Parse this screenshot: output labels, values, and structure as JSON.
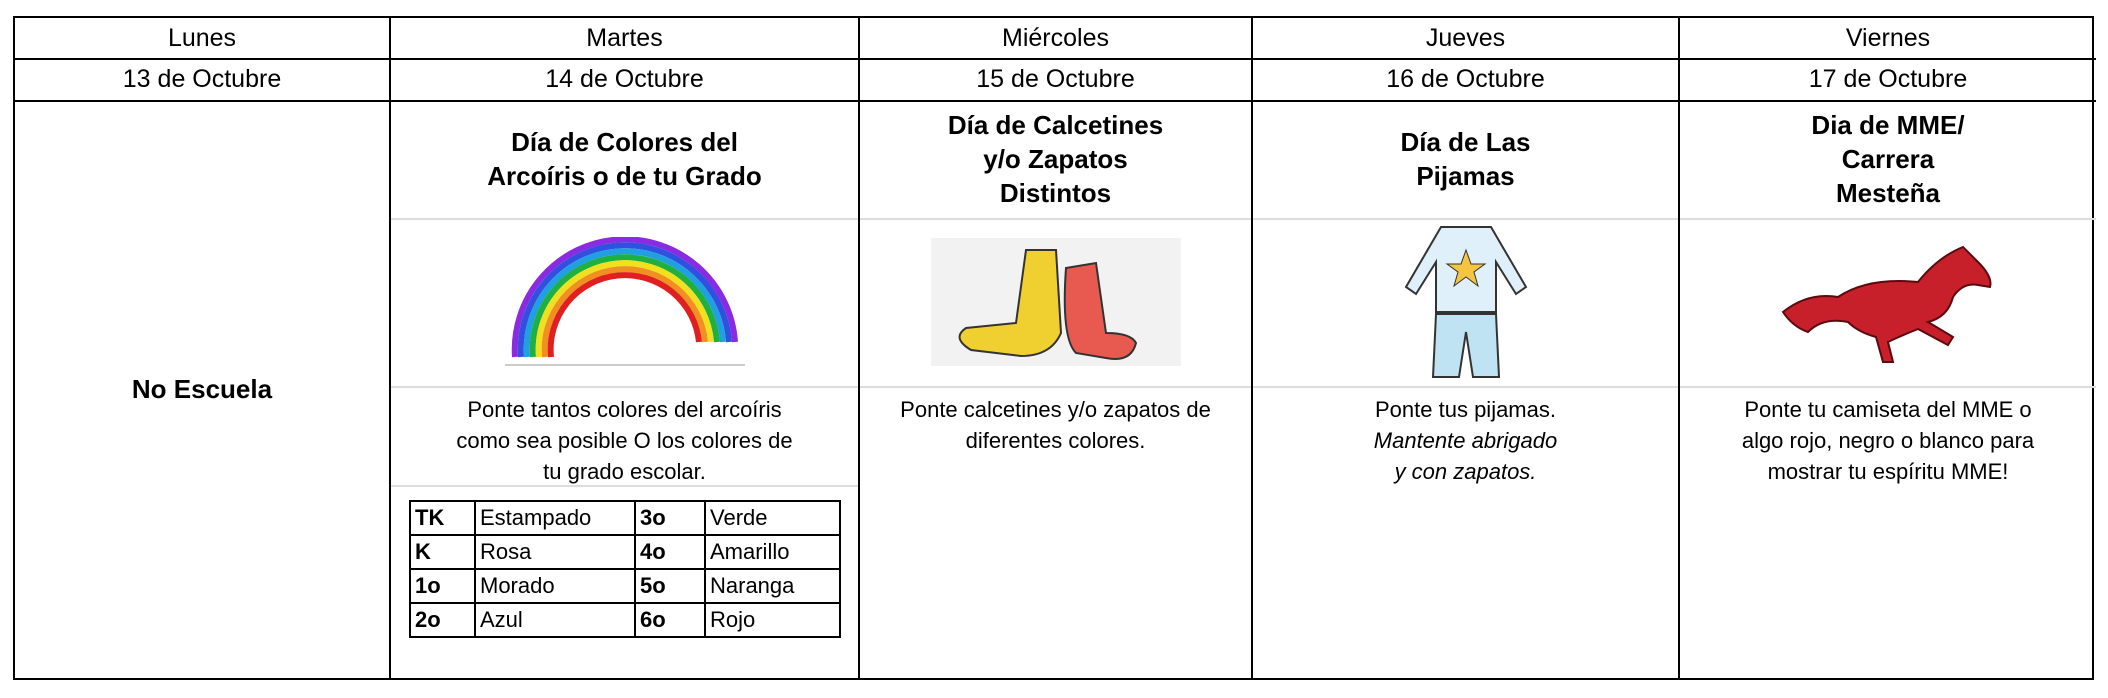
{
  "days": [
    {
      "name": "Lunes",
      "date": "13 de Octubre",
      "note": "No Escuela"
    },
    {
      "name": "Martes",
      "date": "14 de Octubre",
      "title_lines": [
        "Día de Colores del",
        "Arcoíris o de tu Grado"
      ],
      "image": "rainbow-image",
      "desc_lines": [
        "Ponte tantos colores del arcoíris",
        "como sea posible O los colores de",
        "tu grado escolar."
      ]
    },
    {
      "name": "Miércoles",
      "date": "15 de Octubre",
      "title_lines": [
        "Día de Calcetines",
        "y/o Zapatos",
        "Distintos"
      ],
      "image": "socks-image",
      "desc_lines": [
        "Ponte calcetines y/o zapatos de",
        "diferentes colores."
      ]
    },
    {
      "name": "Jueves",
      "date": "16 de Octubre",
      "title_lines": [
        "Día de Las",
        "Pijamas"
      ],
      "image": "pajamas-image",
      "desc_lines": [
        "Ponte tus pijamas."
      ],
      "desc_italic_lines": [
        "Mantente abrigado",
        "y con zapatos."
      ]
    },
    {
      "name": "Viernes",
      "date": "17 de Octubre",
      "title_lines": [
        "Dia de MME/",
        "Carrera",
        "Mesteña"
      ],
      "image": "horse-image",
      "desc_lines": [
        "Ponte tu camiseta del MME o",
        "algo rojo, negro o blanco para",
        "mostrar tu espíritu MME!"
      ]
    }
  ],
  "grade_colors": [
    [
      "TK",
      "Estampado",
      "3o",
      "Verde"
    ],
    [
      "K",
      "Rosa",
      "4o",
      "Amarillo"
    ],
    [
      "1o",
      "Morado",
      "5o",
      "Naranga"
    ],
    [
      "2o",
      "Azul",
      "6o",
      "Rojo"
    ]
  ]
}
